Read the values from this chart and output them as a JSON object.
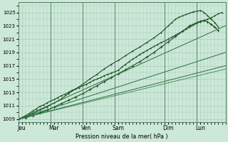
{
  "background_color": "#cce8d8",
  "grid_color": "#aaccbb",
  "plot_bg": "#cce8d8",
  "ylim": [
    1008.5,
    1026.5
  ],
  "yticks": [
    1009,
    1011,
    1013,
    1015,
    1017,
    1019,
    1021,
    1023,
    1025
  ],
  "xlabel": "Pression niveau de la mer( hPa )",
  "total_hours": 174,
  "day_labels": [
    "Jeu",
    "Mar",
    "Ven",
    "Sam",
    "Dim",
    "Lun"
  ],
  "day_x": [
    3,
    30,
    57,
    84,
    126,
    153
  ],
  "day_line_x": [
    27,
    54,
    81,
    123,
    150
  ],
  "day_line_color": "#4a7a5a",
  "series": [
    {
      "x": [
        0,
        3,
        6,
        9,
        12,
        15,
        18,
        21,
        24,
        27,
        30,
        33,
        36,
        39,
        42,
        45,
        48,
        51,
        54,
        57,
        60,
        63,
        66,
        69,
        72,
        75,
        78,
        81,
        84,
        87,
        90,
        93,
        96,
        99,
        102,
        105,
        108,
        111,
        114,
        117,
        120,
        123,
        126,
        129,
        132,
        135,
        138,
        141,
        144,
        147,
        150,
        153,
        156,
        159,
        162,
        165,
        168,
        171
      ],
      "y": [
        1009.0,
        1009.2,
        1009.5,
        1009.8,
        1010.2,
        1010.5,
        1010.9,
        1011.1,
        1011.4,
        1011.7,
        1011.9,
        1012.2,
        1012.5,
        1012.7,
        1013.0,
        1013.3,
        1013.5,
        1013.7,
        1014.0,
        1014.2,
        1014.5,
        1014.8,
        1015.0,
        1015.2,
        1015.5,
        1015.7,
        1015.9,
        1016.1,
        1016.3,
        1016.8,
        1017.2,
        1017.6,
        1018.0,
        1018.3,
        1018.7,
        1019.0,
        1019.3,
        1019.6,
        1019.9,
        1020.2,
        1020.5,
        1020.7,
        1021.0,
        1021.3,
        1021.6,
        1021.9,
        1022.2,
        1022.5,
        1022.8,
        1023.1,
        1023.4,
        1023.6,
        1023.8,
        1024.0,
        1024.2,
        1024.5,
        1024.8,
        1025.0
      ],
      "lw": 0.8,
      "marker": ".",
      "ms": 1.5,
      "color": "#1a5020"
    },
    {
      "x": [
        0,
        6,
        12,
        18,
        24,
        30,
        36,
        42,
        48,
        54,
        60,
        66,
        72,
        78,
        84,
        90,
        96,
        102,
        108,
        114,
        120,
        123,
        126,
        129,
        132,
        135,
        138,
        141,
        144,
        147,
        150,
        153,
        156,
        159,
        162,
        165,
        168
      ],
      "y": [
        1009.0,
        1009.3,
        1009.8,
        1010.3,
        1010.8,
        1011.4,
        1012.0,
        1012.8,
        1013.5,
        1014.2,
        1015.0,
        1015.7,
        1016.5,
        1017.2,
        1017.8,
        1018.5,
        1019.2,
        1019.8,
        1020.5,
        1021.2,
        1022.0,
        1022.5,
        1023.0,
        1023.5,
        1024.0,
        1024.3,
        1024.5,
        1024.7,
        1024.9,
        1025.1,
        1025.2,
        1025.3,
        1025.0,
        1024.5,
        1024.0,
        1023.5,
        1022.8
      ],
      "lw": 0.8,
      "marker": ".",
      "ms": 1.5,
      "color": "#1a5020"
    },
    {
      "x": [
        0,
        6,
        12,
        18,
        24,
        30,
        36,
        42,
        48,
        54,
        60,
        66,
        72,
        78,
        84,
        90,
        96,
        102,
        108,
        114,
        120,
        126,
        132,
        138,
        144,
        150,
        153,
        156,
        159,
        162,
        165,
        168
      ],
      "y": [
        1009.0,
        1009.2,
        1009.5,
        1009.9,
        1010.3,
        1010.8,
        1011.3,
        1011.8,
        1012.3,
        1012.8,
        1013.4,
        1014.0,
        1014.6,
        1015.2,
        1015.8,
        1016.4,
        1017.0,
        1017.6,
        1018.3,
        1019.0,
        1019.8,
        1020.6,
        1021.4,
        1022.2,
        1023.0,
        1023.5,
        1023.7,
        1023.8,
        1023.6,
        1023.2,
        1022.8,
        1022.3
      ],
      "lw": 0.8,
      "marker": "+",
      "ms": 2.5,
      "color": "#1a5020"
    },
    {
      "x": [
        0,
        174
      ],
      "y": [
        1009.0,
        1023.0
      ],
      "lw": 0.7,
      "marker": null,
      "ms": 0,
      "color": "#2a7040"
    },
    {
      "x": [
        0,
        174
      ],
      "y": [
        1009.0,
        1019.0
      ],
      "lw": 0.7,
      "marker": null,
      "ms": 0,
      "color": "#2a7040"
    },
    {
      "x": [
        0,
        174
      ],
      "y": [
        1009.0,
        1017.0
      ],
      "lw": 0.7,
      "marker": null,
      "ms": 0,
      "color": "#2a7040"
    },
    {
      "x": [
        0,
        174
      ],
      "y": [
        1009.0,
        1016.5
      ],
      "lw": 0.6,
      "marker": null,
      "ms": 0,
      "color": "#3a8050"
    }
  ]
}
